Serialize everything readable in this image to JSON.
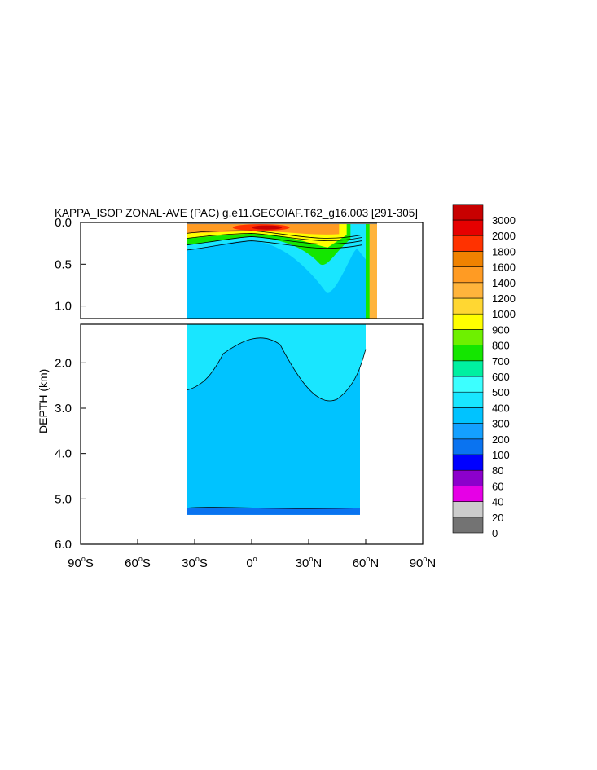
{
  "chart_data": {
    "type": "heatmap",
    "title": "KAPPA_ISOP ZONAL-AVE (PAC) g.e11.GECOIAF.T62_g16.003 [291-305]",
    "ylabel": "DEPTH (km)",
    "xlabel": "",
    "x_range_deg": [
      -90,
      90
    ],
    "y_range_km": [
      0,
      6
    ],
    "y_break_km": 1.15,
    "x_ticks": [
      {
        "value": -90,
        "num": "90",
        "hemi": "S"
      },
      {
        "value": -60,
        "num": "60",
        "hemi": "S"
      },
      {
        "value": -30,
        "num": "30",
        "hemi": "S"
      },
      {
        "value": 0,
        "num": "0",
        "hemi": ""
      },
      {
        "value": 30,
        "num": "30",
        "hemi": "N"
      },
      {
        "value": 60,
        "num": "60",
        "hemi": "N"
      },
      {
        "value": 90,
        "num": "90",
        "hemi": "N"
      }
    ],
    "y_ticks_upper": [
      {
        "value": 0.0,
        "label": "0.0"
      },
      {
        "value": 0.5,
        "label": "0.5"
      },
      {
        "value": 1.0,
        "label": "1.0"
      }
    ],
    "y_ticks_lower": [
      {
        "value": 2.0,
        "label": "2.0"
      },
      {
        "value": 3.0,
        "label": "3.0"
      },
      {
        "value": 4.0,
        "label": "4.0"
      },
      {
        "value": 5.0,
        "label": "5.0"
      },
      {
        "value": 6.0,
        "label": "6.0"
      }
    ],
    "colorbar": {
      "levels": [
        "0",
        "20",
        "40",
        "60",
        "80",
        "100",
        "200",
        "300",
        "400",
        "500",
        "600",
        "700",
        "800",
        "900",
        "1000",
        "1200",
        "1400",
        "1600",
        "1800",
        "2000",
        "3000"
      ],
      "colors": [
        "#737373",
        "#cccccc",
        "#e600e6",
        "#8c00cc",
        "#0000ff",
        "#0a73f0",
        "#14a0ff",
        "#00c3ff",
        "#19e6ff",
        "#3cffff",
        "#00f0a0",
        "#14e600",
        "#6ef000",
        "#ffff00",
        "#ffd732",
        "#ffb43c",
        "#ff9b23",
        "#f08200",
        "#ff3200",
        "#e60000",
        "#c80000"
      ]
    },
    "data_extent_deg": [
      -34,
      66
    ],
    "bottom_depth_km": 5.35,
    "approx_fields": {
      "deep_ocean_value_range": [
        200,
        300
      ],
      "bottom_layer_value_range": [
        100,
        200
      ],
      "upper_ocean_value_range": [
        300,
        400
      ],
      "surface_max_value": 3000,
      "surface_max_lat": 0,
      "surface_max_depth_km": 0.05
    }
  }
}
